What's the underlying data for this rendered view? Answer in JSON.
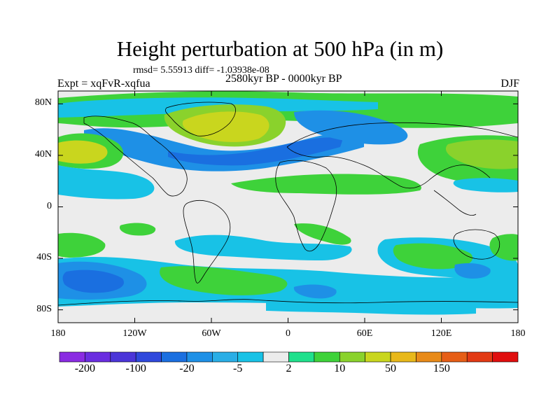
{
  "title": "Height perturbation at 500 hPa (in m)",
  "stats": "rmsd= 5.55913 diff= -1.03938e-08",
  "experiment": "Expt = xqFvR-xqfua",
  "period": "2580kyr BP - 0000kyr BP",
  "season": "DJF",
  "lat_ticks": [
    {
      "label": "80N",
      "lat": 80
    },
    {
      "label": "40N",
      "lat": 40
    },
    {
      "label": "0",
      "lat": 0
    },
    {
      "label": "40S",
      "lat": -40
    },
    {
      "label": "80S",
      "lat": -80
    }
  ],
  "lon_ticks": [
    {
      "label": "180",
      "lon": -180
    },
    {
      "label": "120W",
      "lon": -120
    },
    {
      "label": "60W",
      "lon": -60
    },
    {
      "label": "0",
      "lon": 0
    },
    {
      "label": "60E",
      "lon": 60
    },
    {
      "label": "120E",
      "lon": 120
    },
    {
      "label": "180",
      "lon": 180
    }
  ],
  "colorbar": {
    "colors": [
      "#8a2be2",
      "#6a2de0",
      "#4b35d8",
      "#2f48dc",
      "#1a6fe0",
      "#1e90e6",
      "#2aaee6",
      "#18c2e6",
      "#ececec",
      "#1fe08c",
      "#3ed23a",
      "#8ad22c",
      "#c9d61e",
      "#e8b81a",
      "#e88a18",
      "#e65e16",
      "#e23a14",
      "#e00e0e"
    ],
    "tick_labels": [
      {
        "label": "-200",
        "boundary": 1
      },
      {
        "label": "-100",
        "boundary": 3
      },
      {
        "label": "-20",
        "boundary": 5
      },
      {
        "label": "-5",
        "boundary": 7
      },
      {
        "label": "2",
        "boundary": 9
      },
      {
        "label": "10",
        "boundary": 11
      },
      {
        "label": "50",
        "boundary": 13
      },
      {
        "label": "150",
        "boundary": 15
      }
    ]
  },
  "field_colors": {
    "blue_strong": "#1a6fe0",
    "blue": "#1e90e6",
    "cyan": "#18c2e6",
    "white": "#ececec",
    "green_light": "#1fe08c",
    "green": "#3ed23a",
    "yellow_green": "#8ad22c",
    "yellow": "#c9d61e",
    "orange": "#e8b81a"
  }
}
